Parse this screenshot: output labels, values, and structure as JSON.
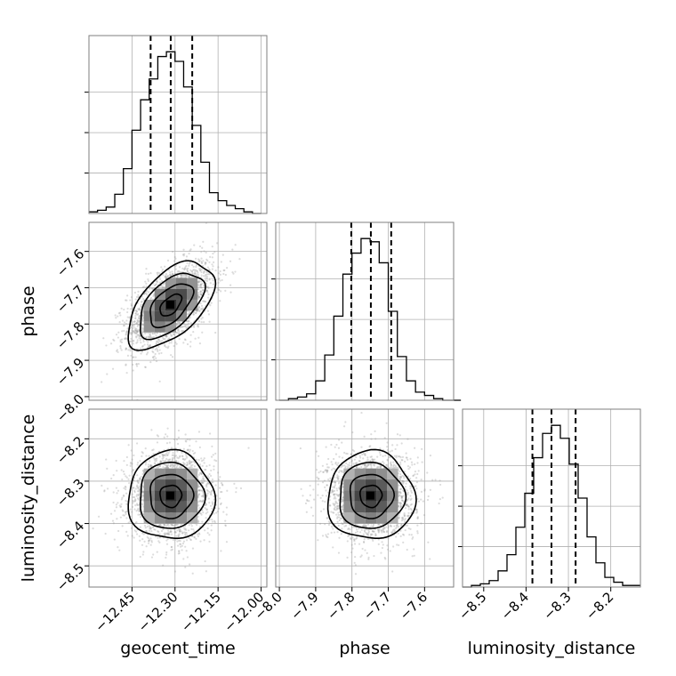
{
  "chart_data": {
    "type": "corner",
    "parameters": [
      "geocent_time",
      "phase",
      "luminosity_distance"
    ],
    "grid": true,
    "axes": {
      "geocent_time": {
        "range": [
          -12.6,
          -11.98
        ],
        "ticks": [
          -12.45,
          -12.3,
          -12.15,
          -12.0
        ],
        "tick_labels": [
          "−12.45",
          "−12.30",
          "−12.15",
          "−12.00"
        ]
      },
      "phase": {
        "range": [
          -8.01,
          -7.52
        ],
        "ticks": [
          -8.0,
          -7.9,
          -7.8,
          -7.7,
          -7.6
        ],
        "tick_labels": [
          "−8.0",
          "−7.9",
          "−7.8",
          "−7.7",
          "−7.6"
        ]
      },
      "luminosity_distance": {
        "range": [
          -8.55,
          -8.13
        ],
        "ticks": [
          -8.5,
          -8.4,
          -8.3,
          -8.2
        ],
        "tick_labels": [
          "−8.5",
          "−8.4",
          "−8.3",
          "−8.2"
        ]
      }
    },
    "marginals": [
      {
        "parameter": "geocent_time",
        "bin_edges": [
          -12.6,
          -12.57,
          -12.54,
          -12.51,
          -12.48,
          -12.45,
          -12.42,
          -12.39,
          -12.36,
          -12.33,
          -12.3,
          -12.27,
          -12.24,
          -12.21,
          -12.18,
          -12.15,
          -12.12,
          -12.09,
          -12.06,
          -12.03,
          -12.0
        ],
        "counts": [
          1,
          2,
          4,
          12,
          28,
          52,
          71,
          84,
          98,
          101,
          95,
          79,
          55,
          32,
          13,
          8,
          5,
          3,
          1,
          0
        ],
        "quantiles": [
          -12.385,
          -12.315,
          -12.24
        ]
      },
      {
        "parameter": "phase",
        "bin_edges": [
          -8.0,
          -7.975,
          -7.95,
          -7.925,
          -7.9,
          -7.875,
          -7.85,
          -7.825,
          -7.8,
          -7.775,
          -7.75,
          -7.725,
          -7.7,
          -7.675,
          -7.65,
          -7.625,
          -7.6,
          -7.575,
          -7.55,
          -7.525,
          -7.5
        ],
        "counts": [
          0,
          1,
          2,
          4,
          12,
          28,
          52,
          78,
          91,
          100,
          98,
          85,
          55,
          27,
          12,
          5,
          3,
          1,
          0,
          0
        ],
        "quantiles": [
          -7.802,
          -7.748,
          -7.692
        ]
      },
      {
        "parameter": "luminosity_distance",
        "bin_edges": [
          -8.55,
          -8.529,
          -8.508,
          -8.487,
          -8.466,
          -8.445,
          -8.424,
          -8.403,
          -8.382,
          -8.361,
          -8.34,
          -8.319,
          -8.298,
          -8.277,
          -8.256,
          -8.235,
          -8.214,
          -8.193,
          -8.172,
          -8.151,
          -8.13
        ],
        "counts": [
          0,
          1,
          2,
          4,
          10,
          20,
          37,
          58,
          80,
          95,
          100,
          92,
          76,
          55,
          31,
          15,
          6,
          3,
          1,
          1
        ],
        "quantiles": [
          -8.385,
          -8.34,
          -8.283
        ]
      }
    ],
    "joint": [
      {
        "x": "geocent_time",
        "y": "phase",
        "mean": [
          -12.315,
          -7.748
        ],
        "sigma": [
          0.075,
          0.06
        ],
        "rho": 0.55,
        "n_samples": 2200
      },
      {
        "x": "geocent_time",
        "y": "luminosity_distance",
        "mean": [
          -12.315,
          -8.335
        ],
        "sigma": [
          0.075,
          0.052
        ],
        "rho": 0.0,
        "n_samples": 2200
      },
      {
        "x": "phase",
        "y": "luminosity_distance",
        "mean": [
          -7.748,
          -8.335
        ],
        "sigma": [
          0.06,
          0.052
        ],
        "rho": 0.0,
        "n_samples": 2200
      }
    ],
    "colors": {
      "line": "#000000",
      "points": "#9a9a9a",
      "grid": "#b0b0b0",
      "axes": "#7f7f7f"
    }
  }
}
